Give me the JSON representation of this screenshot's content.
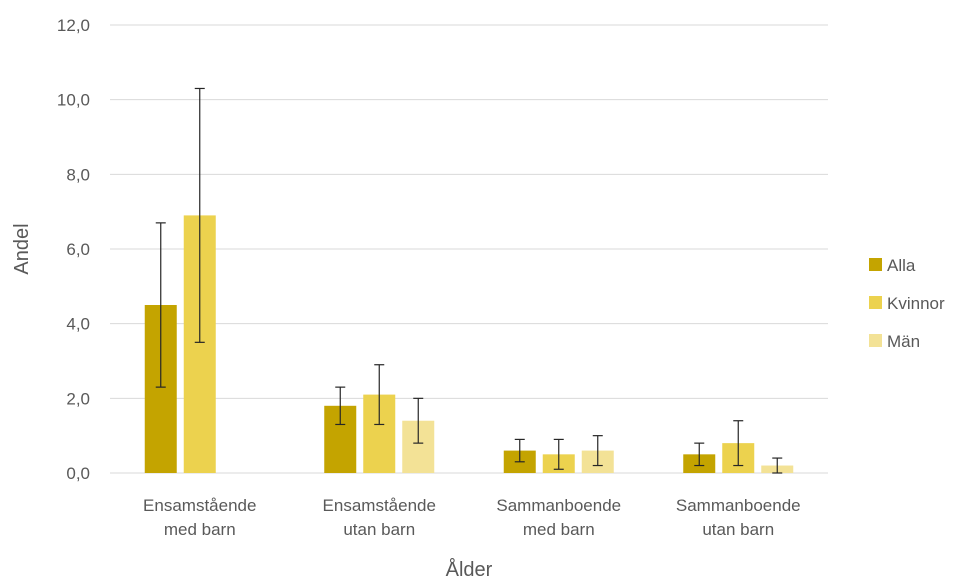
{
  "chart_data": {
    "type": "bar",
    "title": "",
    "xlabel": "Ålder",
    "ylabel": "Andel",
    "ylim": [
      0,
      12
    ],
    "yticks": [
      "0,0",
      "2,0",
      "4,0",
      "6,0",
      "8,0",
      "10,0",
      "12,0"
    ],
    "categories": [
      [
        "Ensamstående",
        "med barn"
      ],
      [
        "Ensamstående",
        "utan barn"
      ],
      [
        "Sammanboende",
        "med barn"
      ],
      [
        "Sammanboende",
        "utan barn"
      ]
    ],
    "series": [
      {
        "name": "Alla",
        "color": "#c4a400",
        "values": [
          4.5,
          1.8,
          0.6,
          0.5
        ],
        "error_low": [
          2.3,
          1.3,
          0.3,
          0.2
        ],
        "error_high": [
          6.7,
          2.3,
          0.9,
          0.8
        ]
      },
      {
        "name": "Kvinnor",
        "color": "#ecd24e",
        "values": [
          6.9,
          2.1,
          0.5,
          0.8
        ],
        "error_low": [
          3.5,
          1.3,
          0.1,
          0.2
        ],
        "error_high": [
          10.3,
          2.9,
          0.9,
          1.4
        ]
      },
      {
        "name": "Män",
        "color": "#f3e296",
        "values": [
          0.0,
          1.4,
          0.6,
          0.2
        ],
        "error_low": [
          null,
          0.8,
          0.2,
          0.0
        ],
        "error_high": [
          null,
          2.0,
          1.0,
          0.4
        ]
      }
    ],
    "grid": true,
    "legend_position": "right"
  }
}
